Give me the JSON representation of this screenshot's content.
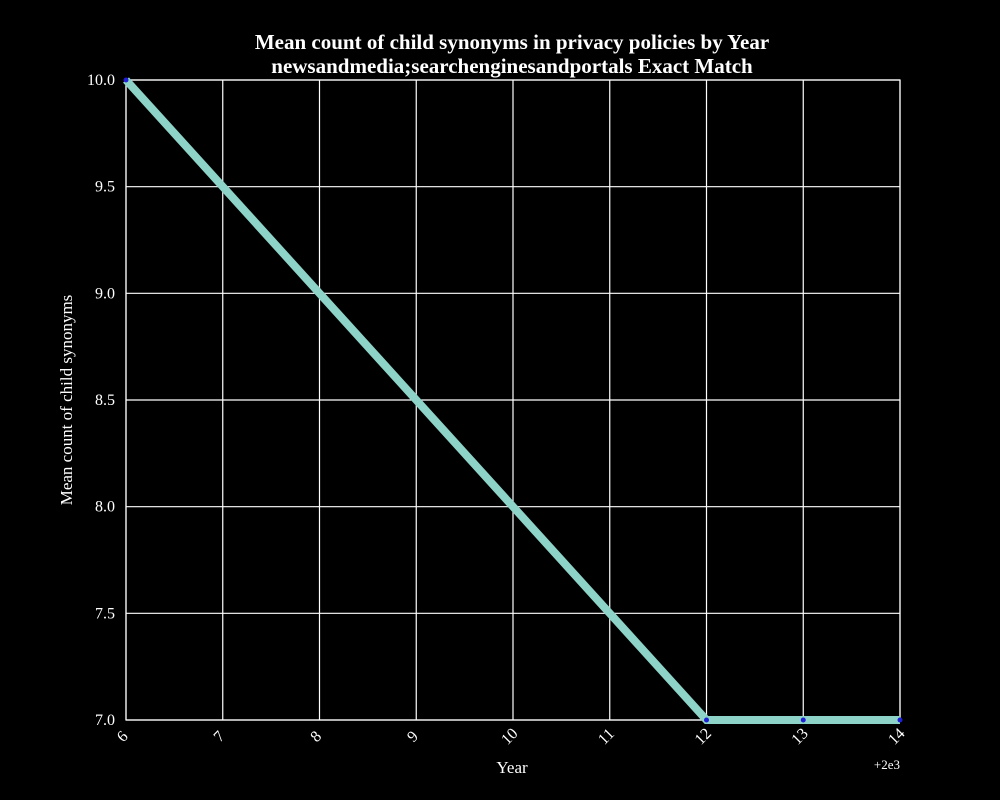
{
  "chart_data": {
    "type": "line",
    "title": "Mean count of child synonyms in privacy policies by Year",
    "subtitle": "newsandmedia;searchenginesandportals Exact Match",
    "xlabel": "Year",
    "ylabel": "Mean count of child synonyms",
    "x_offset_label": "+2e3",
    "xlim": [
      6,
      14
    ],
    "ylim": [
      7.0,
      10.0
    ],
    "x_ticks": [
      6,
      7,
      8,
      9,
      10,
      11,
      12,
      13,
      14
    ],
    "y_ticks": [
      7.0,
      7.5,
      8.0,
      8.5,
      9.0,
      9.5,
      10.0
    ],
    "grid": true,
    "series": [
      {
        "color": "#8dd3c7",
        "marker_color": "#1f1fd6",
        "x": [
          6,
          12,
          13,
          14
        ],
        "y": [
          10.0,
          7.0,
          7.0,
          7.0
        ]
      }
    ]
  }
}
